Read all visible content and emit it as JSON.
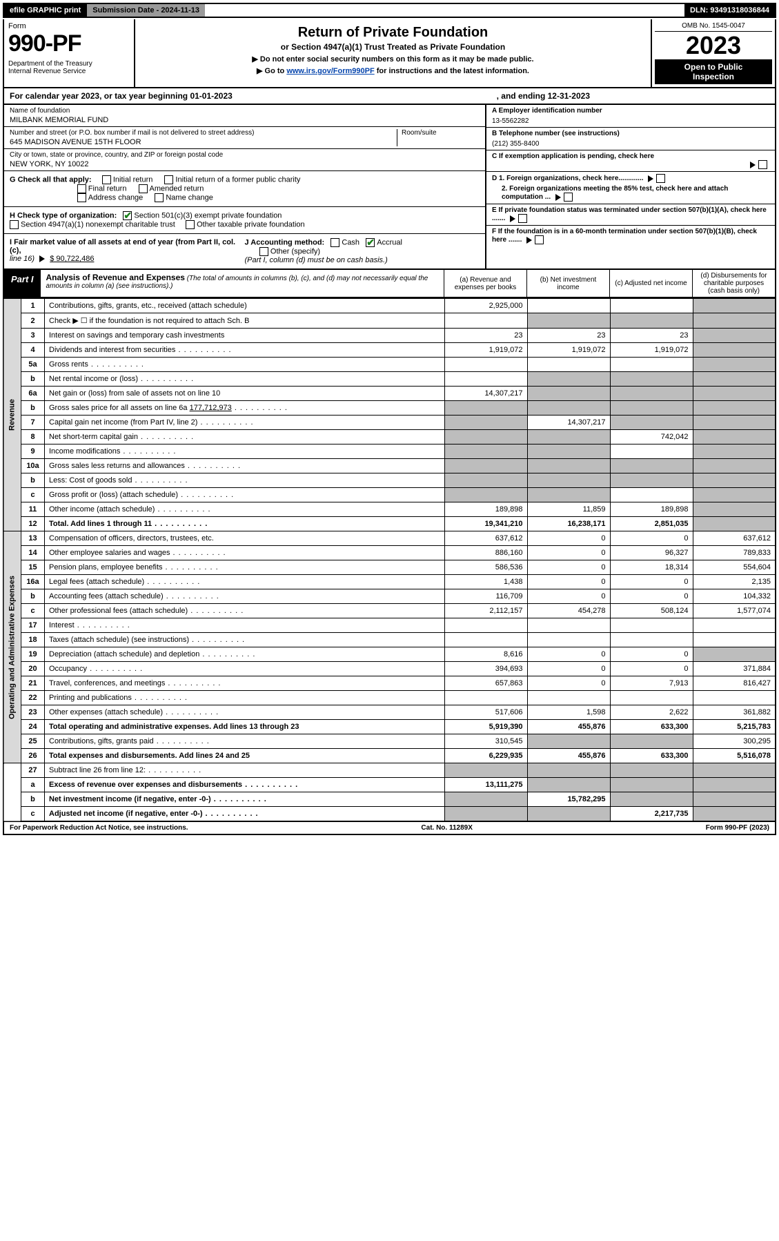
{
  "top_bar": {
    "efile": "efile GRAPHIC print",
    "submission": "Submission Date - 2024-11-13",
    "dln": "DLN: 93491318036844"
  },
  "form_head": {
    "form_word": "Form",
    "form_num": "990-PF",
    "dept": "Department of the Treasury\nInternal Revenue Service",
    "title": "Return of Private Foundation",
    "sub1": "or Section 4947(a)(1) Trust Treated as Private Foundation",
    "sub2": "▶ Do not enter social security numbers on this form as it may be made public.",
    "sub3_prefix": "▶ Go to ",
    "sub3_link": "www.irs.gov/Form990PF",
    "sub3_suffix": " for instructions and the latest information.",
    "omb": "OMB No. 1545-0047",
    "tax_year": "2023",
    "open_pub": "Open to Public\nInspection"
  },
  "cal_year": {
    "label": "For calendar year 2023, or tax year beginning 01-01-2023",
    "ending": ", and ending 12-31-2023"
  },
  "ident": {
    "name_lbl": "Name of foundation",
    "name": "MILBANK MEMORIAL FUND",
    "addr_lbl": "Number and street (or P.O. box number if mail is not delivered to street address)",
    "addr": "645 MADISON AVENUE 15TH FLOOR",
    "room_lbl": "Room/suite",
    "city_lbl": "City or town, state or province, country, and ZIP or foreign postal code",
    "city": "NEW YORK, NY  10022",
    "ein_lbl": "A Employer identification number",
    "ein": "13-5562282",
    "phone_lbl": "B Telephone number (see instructions)",
    "phone": "(212) 355-8400",
    "c_lbl": "C If exemption application is pending, check here",
    "d1_lbl": "D 1. Foreign organizations, check here.............",
    "d2_lbl": "2. Foreign organizations meeting the 85% test, check here and attach computation ...",
    "e_lbl": "E  If private foundation status was terminated under section 507(b)(1)(A), check here .......",
    "f_lbl": "F  If the foundation is in a 60-month termination under section 507(b)(1)(B), check here .......",
    "g_lbl": "G Check all that apply:",
    "g_opts": [
      "Initial return",
      "Final return",
      "Address change",
      "Initial return of a former public charity",
      "Amended return",
      "Name change"
    ],
    "h_lbl": "H Check type of organization:",
    "h_501c3": "Section 501(c)(3) exempt private foundation",
    "h_4947": "Section 4947(a)(1) nonexempt charitable trust",
    "h_other": "Other taxable private foundation",
    "i_lbl": "I Fair market value of all assets at end of year (from Part II, col. (c),",
    "i_line": "line 16)",
    "i_val": "$  90,722,486",
    "j_lbl": "J Accounting method:",
    "j_cash": "Cash",
    "j_accrual": "Accrual",
    "j_other": "Other (specify)",
    "j_note": "(Part I, column (d) must be on cash basis.)"
  },
  "part1": {
    "tab": "Part I",
    "title": "Analysis of Revenue and Expenses",
    "note": " (The total of amounts in columns (b), (c), and (d) may not necessarily equal the amounts in column (a) (see instructions).)",
    "cols": {
      "a": "(a)  Revenue and expenses per books",
      "b": "(b)  Net investment income",
      "c": "(c)  Adjusted net income",
      "d": "(d)  Disbursements for charitable purposes (cash basis only)"
    }
  },
  "side_labels": {
    "revenue": "Revenue",
    "op_admin": "Operating and Administrative Expenses"
  },
  "rows": [
    {
      "ln": "1",
      "desc": "Contributions, gifts, grants, etc., received (attach schedule)",
      "a": "2,925,000",
      "b": "",
      "c": "",
      "d": "",
      "d_grey": true,
      "c_grey": false
    },
    {
      "ln": "2",
      "desc": "Check ▶ ☐ if the foundation is not required to attach Sch. B",
      "a": "",
      "b": "",
      "c": "",
      "d": "",
      "all_grey_bcd": true,
      "b_grey": true,
      "c_grey": true,
      "d_grey": true
    },
    {
      "ln": "3",
      "desc": "Interest on savings and temporary cash investments",
      "a": "23",
      "b": "23",
      "c": "23",
      "d": "",
      "d_grey": true
    },
    {
      "ln": "4",
      "desc": "Dividends and interest from securities",
      "a": "1,919,072",
      "b": "1,919,072",
      "c": "1,919,072",
      "d": "",
      "d_grey": true
    },
    {
      "ln": "5a",
      "desc": "Gross rents",
      "a": "",
      "b": "",
      "c": "",
      "d": "",
      "d_grey": true
    },
    {
      "ln": "b",
      "desc": "Net rental income or (loss)",
      "a": "",
      "b": "",
      "c": "",
      "d": "",
      "bcd_grey": true
    },
    {
      "ln": "6a",
      "desc": "Net gain or (loss) from sale of assets not on line 10",
      "a": "14,307,217",
      "b": "",
      "c": "",
      "d": "",
      "bcd_grey": true
    },
    {
      "ln": "b",
      "desc": "Gross sales price for all assets on line 6a",
      "inline": "177,712,973",
      "a": "",
      "b": "",
      "c": "",
      "d": "",
      "all_grey": true
    },
    {
      "ln": "7",
      "desc": "Capital gain net income (from Part IV, line 2)",
      "a": "",
      "b": "14,307,217",
      "c": "",
      "d": "",
      "a_grey": true,
      "cd_grey": true
    },
    {
      "ln": "8",
      "desc": "Net short-term capital gain",
      "a": "",
      "b": "",
      "c": "742,042",
      "d": "",
      "ab_grey": true,
      "d_grey": true
    },
    {
      "ln": "9",
      "desc": "Income modifications",
      "a": "",
      "b": "",
      "c": "",
      "d": "",
      "ab_grey": true,
      "d_grey": true
    },
    {
      "ln": "10a",
      "desc": "Gross sales less returns and allowances",
      "a": "",
      "b": "",
      "c": "",
      "d": "",
      "all_grey": true
    },
    {
      "ln": "b",
      "desc": "Less: Cost of goods sold",
      "a": "",
      "b": "",
      "c": "",
      "d": "",
      "all_grey": true
    },
    {
      "ln": "c",
      "desc": "Gross profit or (loss) (attach schedule)",
      "a": "",
      "b": "",
      "c": "",
      "d": "",
      "ab_grey": true,
      "d_grey": true
    },
    {
      "ln": "11",
      "desc": "Other income (attach schedule)",
      "a": "189,898",
      "b": "11,859",
      "c": "189,898",
      "d": "",
      "d_grey": true
    },
    {
      "ln": "12",
      "desc": "Total. Add lines 1 through 11",
      "a": "19,341,210",
      "b": "16,238,171",
      "c": "2,851,035",
      "d": "",
      "d_grey": true,
      "bold": true
    }
  ],
  "exp_rows": [
    {
      "ln": "13",
      "desc": "Compensation of officers, directors, trustees, etc.",
      "a": "637,612",
      "b": "0",
      "c": "0",
      "d": "637,612"
    },
    {
      "ln": "14",
      "desc": "Other employee salaries and wages",
      "a": "886,160",
      "b": "0",
      "c": "96,327",
      "d": "789,833"
    },
    {
      "ln": "15",
      "desc": "Pension plans, employee benefits",
      "a": "586,536",
      "b": "0",
      "c": "18,314",
      "d": "554,604"
    },
    {
      "ln": "16a",
      "desc": "Legal fees (attach schedule)",
      "a": "1,438",
      "b": "0",
      "c": "0",
      "d": "2,135"
    },
    {
      "ln": "b",
      "desc": "Accounting fees (attach schedule)",
      "a": "116,709",
      "b": "0",
      "c": "0",
      "d": "104,332"
    },
    {
      "ln": "c",
      "desc": "Other professional fees (attach schedule)",
      "a": "2,112,157",
      "b": "454,278",
      "c": "508,124",
      "d": "1,577,074"
    },
    {
      "ln": "17",
      "desc": "Interest",
      "a": "",
      "b": "",
      "c": "",
      "d": ""
    },
    {
      "ln": "18",
      "desc": "Taxes (attach schedule) (see instructions)",
      "a": "",
      "b": "",
      "c": "",
      "d": ""
    },
    {
      "ln": "19",
      "desc": "Depreciation (attach schedule) and depletion",
      "a": "8,616",
      "b": "0",
      "c": "0",
      "d": "",
      "d_grey": true
    },
    {
      "ln": "20",
      "desc": "Occupancy",
      "a": "394,693",
      "b": "0",
      "c": "0",
      "d": "371,884"
    },
    {
      "ln": "21",
      "desc": "Travel, conferences, and meetings",
      "a": "657,863",
      "b": "0",
      "c": "7,913",
      "d": "816,427"
    },
    {
      "ln": "22",
      "desc": "Printing and publications",
      "a": "",
      "b": "",
      "c": "",
      "d": ""
    },
    {
      "ln": "23",
      "desc": "Other expenses (attach schedule)",
      "a": "517,606",
      "b": "1,598",
      "c": "2,622",
      "d": "361,882"
    },
    {
      "ln": "24",
      "desc": "Total operating and administrative expenses. Add lines 13 through 23",
      "a": "5,919,390",
      "b": "455,876",
      "c": "633,300",
      "d": "5,215,783",
      "bold": true
    },
    {
      "ln": "25",
      "desc": "Contributions, gifts, grants paid",
      "a": "310,545",
      "b": "",
      "c": "",
      "d": "300,295",
      "bc_grey": true
    },
    {
      "ln": "26",
      "desc": "Total expenses and disbursements. Add lines 24 and 25",
      "a": "6,229,935",
      "b": "455,876",
      "c": "633,300",
      "d": "5,516,078",
      "bold": true
    }
  ],
  "bottom_rows": [
    {
      "ln": "27",
      "desc": "Subtract line 26 from line 12:",
      "a": "",
      "b": "",
      "c": "",
      "d": "",
      "all_grey": true
    },
    {
      "ln": "a",
      "desc": "Excess of revenue over expenses and disbursements",
      "a": "13,111,275",
      "b": "",
      "c": "",
      "d": "",
      "bcd_grey": true,
      "bold": true
    },
    {
      "ln": "b",
      "desc": "Net investment income (if negative, enter -0-)",
      "a": "",
      "b": "15,782,295",
      "c": "",
      "d": "",
      "a_grey": true,
      "cd_grey": true,
      "bold": true
    },
    {
      "ln": "c",
      "desc": "Adjusted net income (if negative, enter -0-)",
      "a": "",
      "b": "",
      "c": "2,217,735",
      "d": "",
      "ab_grey": true,
      "d_grey": true,
      "bold": true
    }
  ],
  "footer": {
    "left": "For Paperwork Reduction Act Notice, see instructions.",
    "mid": "Cat. No. 11289X",
    "right": "Form 990-PF (2023)"
  },
  "colors": {
    "link": "#0645ad",
    "check": "#1a7f1a",
    "grey_cell": "#bdbdbd",
    "side_grey": "#d9d9d9"
  }
}
